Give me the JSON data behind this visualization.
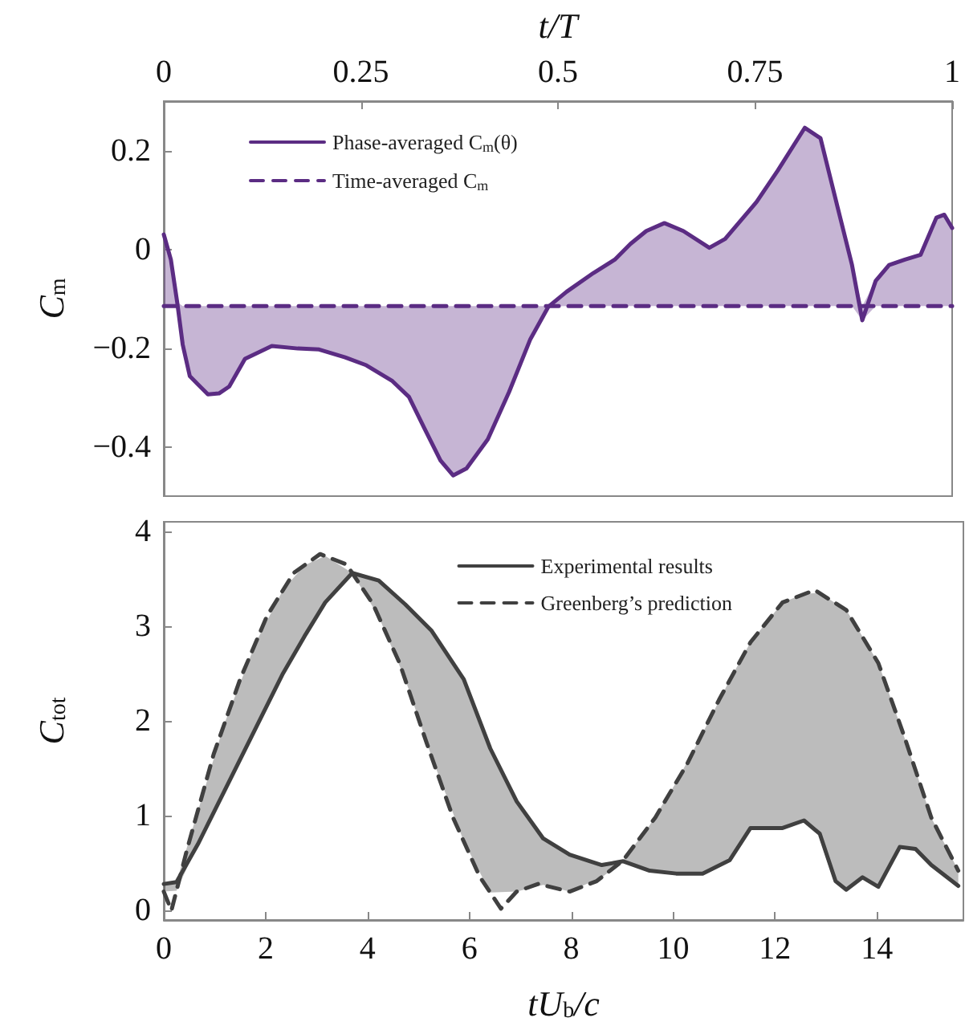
{
  "chart_data": [
    {
      "type": "line",
      "xlabel": "t/T",
      "ylabel": "C$_{m}$",
      "xlim": [
        0,
        1
      ],
      "xticks": [
        0,
        0.25,
        0.5,
        0.75,
        1
      ],
      "ylim": [
        -0.5,
        0.3
      ],
      "yticks": [
        {
          "value": -0.4,
          "label": "−0.4"
        },
        {
          "value": -0.2,
          "label": "−0.2"
        },
        0,
        0.2
      ],
      "grid": false,
      "legend": "top left",
      "series": [
        {
          "name": "Phase-averaged C$_{m}$(θ)",
          "color": "#5b2c83",
          "line_style": "solid",
          "x": [
            0,
            0.009,
            0.017,
            0.024,
            0.033,
            0.043,
            0.056,
            0.07,
            0.083,
            0.103,
            0.137,
            0.17,
            0.197,
            0.23,
            0.257,
            0.29,
            0.311,
            0.331,
            0.351,
            0.367,
            0.384,
            0.411,
            0.438,
            0.465,
            0.488,
            0.511,
            0.545,
            0.572,
            0.592,
            0.612,
            0.635,
            0.659,
            0.692,
            0.712,
            0.752,
            0.779,
            0.813,
            0.833,
            0.853,
            0.873,
            0.886,
            0.903,
            0.92,
            0.94,
            0.96,
            0.98,
            0.99,
            1
          ],
          "values": [
            0.03,
            -0.021,
            -0.107,
            -0.193,
            -0.257,
            -0.273,
            -0.294,
            -0.292,
            -0.278,
            -0.222,
            -0.196,
            -0.201,
            -0.203,
            -0.219,
            -0.235,
            -0.267,
            -0.299,
            -0.364,
            -0.428,
            -0.458,
            -0.444,
            -0.385,
            -0.289,
            -0.182,
            -0.116,
            -0.086,
            -0.048,
            -0.021,
            0.011,
            0.037,
            0.053,
            0.037,
            0.003,
            0.021,
            0.096,
            0.16,
            0.246,
            0.225,
            0.096,
            -0.032,
            -0.144,
            -0.064,
            -0.032,
            -0.021,
            -0.011,
            0.064,
            0.07,
            0.043
          ],
          "upper": [
            0.03,
            -0.021,
            -0.107,
            -0.115,
            -0.115,
            -0.115,
            -0.115,
            -0.115,
            -0.115,
            -0.115,
            -0.115,
            -0.115,
            -0.115,
            -0.115,
            -0.115,
            -0.115,
            -0.115,
            -0.115,
            -0.115,
            -0.115,
            -0.115,
            -0.115,
            -0.115,
            -0.115,
            -0.115,
            -0.086,
            -0.048,
            -0.021,
            0.011,
            0.037,
            0.053,
            0.037,
            0.003,
            0.021,
            0.096,
            0.16,
            0.246,
            0.225,
            0.096,
            -0.032,
            -0.115,
            -0.064,
            -0.032,
            -0.021,
            -0.011,
            0.064,
            0.07,
            0.043
          ],
          "lower": [
            -0.115,
            -0.115,
            -0.115,
            -0.193,
            -0.257,
            -0.273,
            -0.294,
            -0.292,
            -0.278,
            -0.222,
            -0.196,
            -0.201,
            -0.203,
            -0.219,
            -0.235,
            -0.267,
            -0.299,
            -0.364,
            -0.428,
            -0.458,
            -0.444,
            -0.385,
            -0.289,
            -0.182,
            -0.116,
            -0.115,
            -0.115,
            -0.115,
            -0.115,
            -0.115,
            -0.115,
            -0.115,
            -0.115,
            -0.115,
            -0.115,
            -0.115,
            -0.115,
            -0.115,
            -0.115,
            -0.115,
            -0.144,
            -0.115,
            -0.115,
            -0.115,
            -0.115,
            -0.115,
            -0.115,
            -0.115
          ]
        },
        {
          "name": "Time-averaged C$_{m}$",
          "color": "#5b2c83",
          "line_style": "dashed",
          "x": [
            0,
            1
          ],
          "values": [
            -0.115,
            -0.115
          ]
        }
      ]
    },
    {
      "type": "line",
      "xlabel": "tU$_{b}$/c",
      "ylabel": "C$_{tot}$",
      "xlim": [
        0,
        15.7
      ],
      "xticks": [
        0,
        2,
        4,
        6,
        8,
        10,
        12,
        14
      ],
      "ylim": [
        -0.1,
        4.1
      ],
      "yticks": [
        0,
        1,
        2,
        3,
        4
      ],
      "grid": false,
      "legend": "top right",
      "series": [
        {
          "name": "Experimental results",
          "color": "#404040",
          "line_style": "solid",
          "x": [
            0,
            0.25,
            0.67,
            1.19,
            1.82,
            2.34,
            2.76,
            3.17,
            3.7,
            4.22,
            4.74,
            5.26,
            5.89,
            6.41,
            6.93,
            7.45,
            7.97,
            8.6,
            9.02,
            9.54,
            10.06,
            10.58,
            11.11,
            11.52,
            12.15,
            12.57,
            12.88,
            13.19,
            13.4,
            13.72,
            14.03,
            14.45,
            14.76,
            15.07,
            15.6
          ],
          "values": [
            0.28,
            0.3,
            0.7,
            1.26,
            1.94,
            2.5,
            2.89,
            3.25,
            3.56,
            3.48,
            3.23,
            2.95,
            2.44,
            1.71,
            1.15,
            0.76,
            0.59,
            0.48,
            0.52,
            0.42,
            0.39,
            0.39,
            0.53,
            0.87,
            0.87,
            0.95,
            0.81,
            0.31,
            0.22,
            0.35,
            0.25,
            0.67,
            0.65,
            0.48,
            0.26
          ],
          "lower": [
            0.2,
            0.21,
            0.7,
            1.26,
            1.94,
            2.5,
            2.89,
            3.25,
            3.56,
            3.1,
            2.44,
            1.62,
            0.73,
            0.19,
            0.2,
            0.27,
            0.2,
            0.35,
            0.52,
            0.42,
            0.39,
            0.39,
            0.53,
            0.87,
            0.87,
            0.95,
            0.81,
            0.31,
            0.22,
            0.35,
            0.25,
            0.67,
            0.65,
            0.48,
            0.26
          ],
          "upper": [
            0.28,
            0.3,
            1.05,
            1.97,
            2.84,
            3.38,
            3.64,
            3.74,
            3.56,
            3.48,
            3.23,
            2.95,
            2.44,
            1.71,
            1.15,
            0.76,
            0.59,
            0.48,
            0.53,
            0.9,
            1.35,
            1.87,
            2.43,
            2.83,
            3.25,
            3.34,
            3.35,
            3.24,
            3.17,
            2.89,
            2.61,
            1.97,
            1.48,
            0.98,
            0.42
          ]
        },
        {
          "name": "Greenberg’s prediction",
          "color": "#404040",
          "line_style": "dashed",
          "x": [
            0,
            0.15,
            0.46,
            0.98,
            1.5,
            2.03,
            2.55,
            3.07,
            3.59,
            4.11,
            4.63,
            5.16,
            5.68,
            6.2,
            6.62,
            6.93,
            7.35,
            7.97,
            8.5,
            9.02,
            9.65,
            10.27,
            10.9,
            11.52,
            12.15,
            12.78,
            13.4,
            14.03,
            14.55,
            15.07,
            15.6
          ],
          "values": [
            0.2,
            0,
            0.65,
            1.65,
            2.44,
            3.11,
            3.56,
            3.76,
            3.65,
            3.23,
            2.61,
            1.77,
            0.98,
            0.36,
            0.02,
            0.2,
            0.28,
            0.2,
            0.31,
            0.53,
            0.98,
            1.54,
            2.22,
            2.83,
            3.25,
            3.38,
            3.17,
            2.61,
            1.82,
            0.98,
            0.42
          ]
        }
      ]
    }
  ]
}
